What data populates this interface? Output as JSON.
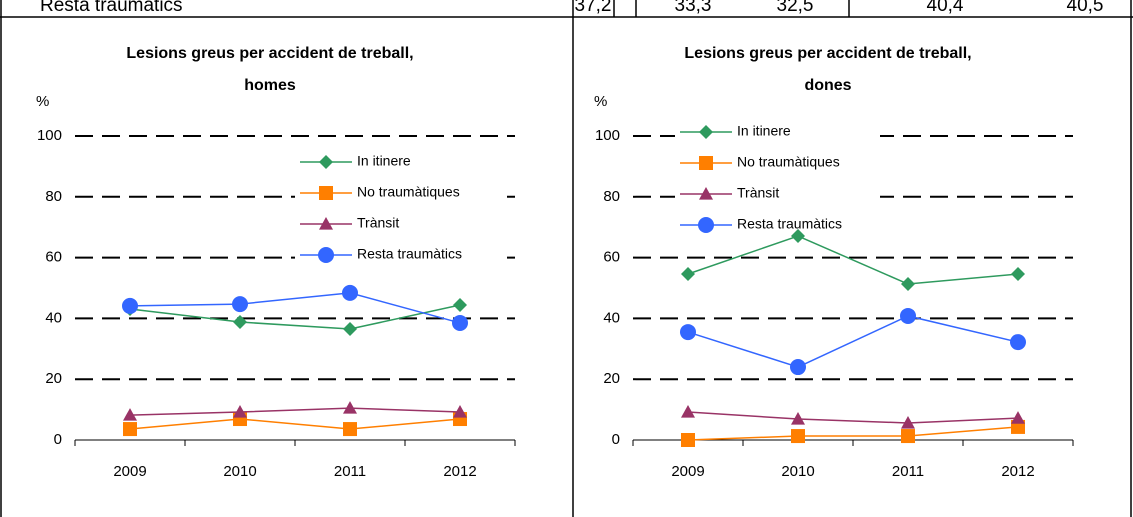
{
  "table": {
    "rows": [
      [
        "Resta traumàtics",
        "37,2",
        "33,3",
        "32,5",
        "40,4",
        "40,5"
      ]
    ]
  },
  "chart_data": [
    {
      "type": "line",
      "title": [
        "Lesions greus per accident de treball,",
        "homes"
      ],
      "ylabel": "%",
      "categories": [
        "2009",
        "2010",
        "2011",
        "2012"
      ],
      "ylim": [
        0,
        100
      ],
      "yticks": [
        0,
        20,
        40,
        60,
        80,
        100
      ],
      "grid": true,
      "legend": "upper right",
      "series": [
        {
          "name": "In itinere",
          "color": "#2e9a5e",
          "marker": "diamond",
          "values": [
            43.1,
            38.8,
            36.5,
            44.4
          ]
        },
        {
          "name": "No traumàtiques",
          "color": "#ff7f00",
          "marker": "square",
          "values": [
            3.6,
            6.9,
            3.6,
            6.9
          ]
        },
        {
          "name": "Trànsit",
          "color": "#993366",
          "marker": "triangle",
          "values": [
            8.2,
            9.2,
            10.5,
            9.2
          ]
        },
        {
          "name": "Resta traumàtics",
          "color": "#3366ff",
          "marker": "circle",
          "values": [
            44.1,
            44.7,
            48.4,
            38.5
          ]
        }
      ]
    },
    {
      "type": "line",
      "title": [
        "Lesions greus per accident de treball,",
        "dones"
      ],
      "ylabel": "%",
      "categories": [
        "2009",
        "2010",
        "2011",
        "2012"
      ],
      "ylim": [
        0,
        100
      ],
      "yticks": [
        0,
        20,
        40,
        60,
        80,
        100
      ],
      "grid": true,
      "legend": "upper left",
      "series": [
        {
          "name": "In itinere",
          "color": "#2e9a5e",
          "marker": "diamond",
          "values": [
            54.6,
            67.1,
            51.3,
            54.6
          ]
        },
        {
          "name": "No traumàtiques",
          "color": "#ff7f00",
          "marker": "square",
          "values": [
            0,
            1.3,
            1.3,
            4.3
          ]
        },
        {
          "name": "Trànsit",
          "color": "#993366",
          "marker": "triangle",
          "values": [
            9.2,
            6.9,
            5.6,
            7.2
          ]
        },
        {
          "name": "Resta traumàtics",
          "color": "#3366ff",
          "marker": "circle",
          "values": [
            35.5,
            24,
            40.8,
            32.2
          ]
        }
      ]
    }
  ]
}
